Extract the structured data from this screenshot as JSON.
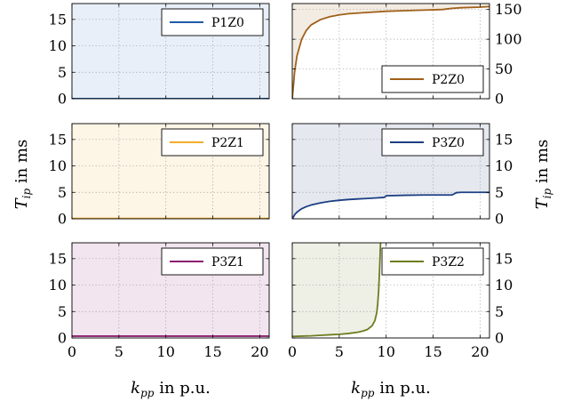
{
  "figure": {
    "xlabel_var": "k",
    "xlabel_sub": "pp",
    "xlabel_unit": " in p.u.",
    "ylabel_var": "T",
    "ylabel_sub": "ip",
    "ylabel_unit": " in ms"
  },
  "chart_data": [
    {
      "type": "area",
      "legend": "P1Z0",
      "color": "#1f5aa6",
      "fill": "#e8eff8",
      "x": [
        0,
        21
      ],
      "y": [
        0.02,
        0.02
      ],
      "xlim": [
        0,
        21
      ],
      "ylim": [
        0,
        18
      ],
      "yticks": [
        0,
        5,
        10,
        15
      ],
      "xticks": [
        0,
        5,
        10,
        15,
        20
      ],
      "ytick_side": "left",
      "legend_position": "top-right",
      "grid": true,
      "xtick_labels": false
    },
    {
      "type": "area",
      "legend": "P2Z0",
      "color": "#a0601a",
      "fill": "#f3ece3",
      "x": [
        0,
        0.25,
        0.5,
        1,
        1.5,
        2,
        3,
        4,
        5,
        6,
        8,
        10,
        12,
        14,
        16,
        17,
        18,
        20,
        21
      ],
      "y": [
        0,
        45,
        72,
        100,
        115,
        124,
        133,
        138,
        141,
        143,
        145,
        147,
        148,
        149,
        150,
        152,
        153,
        154,
        155
      ],
      "xlim": [
        0,
        21
      ],
      "ylim": [
        0,
        160
      ],
      "yticks": [
        0,
        50,
        100,
        150
      ],
      "xticks": [
        0,
        5,
        10,
        15,
        20
      ],
      "ytick_side": "right",
      "legend_position": "bottom-right",
      "grid": true,
      "xtick_labels": false
    },
    {
      "type": "area",
      "legend": "P2Z1",
      "color": "#f0ad2a",
      "fill": "#fdf5e6",
      "x": [
        0,
        21
      ],
      "y": [
        0.05,
        0.05
      ],
      "xlim": [
        0,
        21
      ],
      "ylim": [
        0,
        18
      ],
      "yticks": [
        0,
        5,
        10,
        15
      ],
      "xticks": [
        0,
        5,
        10,
        15,
        20
      ],
      "ytick_side": "left",
      "legend_position": "top-right",
      "grid": true,
      "xtick_labels": false
    },
    {
      "type": "area",
      "legend": "P3Z0",
      "color": "#1c3f82",
      "fill": "#e5e8ef",
      "x": [
        0,
        0.3,
        0.6,
        1,
        1.5,
        2,
        3,
        4,
        5,
        6,
        7,
        8,
        9,
        9.8,
        10,
        12,
        14,
        16,
        17,
        17.5,
        18,
        20,
        21
      ],
      "y": [
        0,
        0.9,
        1.4,
        1.9,
        2.3,
        2.6,
        3.0,
        3.3,
        3.5,
        3.65,
        3.75,
        3.85,
        3.95,
        4.05,
        4.35,
        4.45,
        4.5,
        4.5,
        4.5,
        4.95,
        5.0,
        5.0,
        5.0
      ],
      "xlim": [
        0,
        21
      ],
      "ylim": [
        0,
        18
      ],
      "yticks": [
        0,
        5,
        10,
        15
      ],
      "xticks": [
        0,
        5,
        10,
        15,
        20
      ],
      "ytick_side": "right",
      "legend_position": "top-right",
      "grid": true,
      "xtick_labels": false
    },
    {
      "type": "area",
      "legend": "P3Z1",
      "color": "#8c1d6e",
      "fill": "#f2e5ef",
      "x": [
        0,
        21
      ],
      "y": [
        0.35,
        0.35
      ],
      "xlim": [
        0,
        21
      ],
      "ylim": [
        0,
        18
      ],
      "yticks": [
        0,
        5,
        10,
        15
      ],
      "xticks": [
        0,
        5,
        10,
        15,
        20
      ],
      "ytick_side": "left",
      "legend_position": "top-right",
      "grid": true,
      "xtick_labels": true
    },
    {
      "type": "area",
      "legend": "P3Z2",
      "color": "#6b7d1f",
      "fill": "#eef0e6",
      "x": [
        0,
        1,
        2,
        3,
        4,
        5,
        6,
        7,
        7.5,
        8,
        8.5,
        8.8,
        9.0,
        9.1,
        9.2,
        9.3,
        9.4
      ],
      "y": [
        0.3,
        0.35,
        0.4,
        0.5,
        0.6,
        0.7,
        0.85,
        1.1,
        1.3,
        1.6,
        2.3,
        3.3,
        4.8,
        6.5,
        9.0,
        13.0,
        18.0
      ],
      "xlim": [
        0,
        21
      ],
      "ylim": [
        0,
        18
      ],
      "yticks": [
        0,
        5,
        10,
        15
      ],
      "xticks": [
        0,
        5,
        10,
        15,
        20
      ],
      "ytick_side": "right",
      "legend_position": "top-right",
      "grid": true,
      "xtick_labels": true
    }
  ]
}
